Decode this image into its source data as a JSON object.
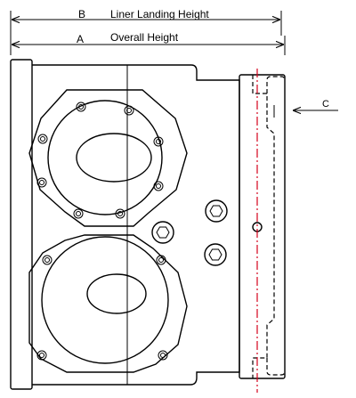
{
  "dimensions": {
    "liner_landing": {
      "letter": "B",
      "label": "Liner Landing Height"
    },
    "overall": {
      "letter": "A",
      "label": "Overall Height"
    }
  },
  "callout": {
    "letter": "C"
  },
  "colors": {
    "line": "#000000",
    "centerline": "#d4001a",
    "background": "#ffffff"
  }
}
